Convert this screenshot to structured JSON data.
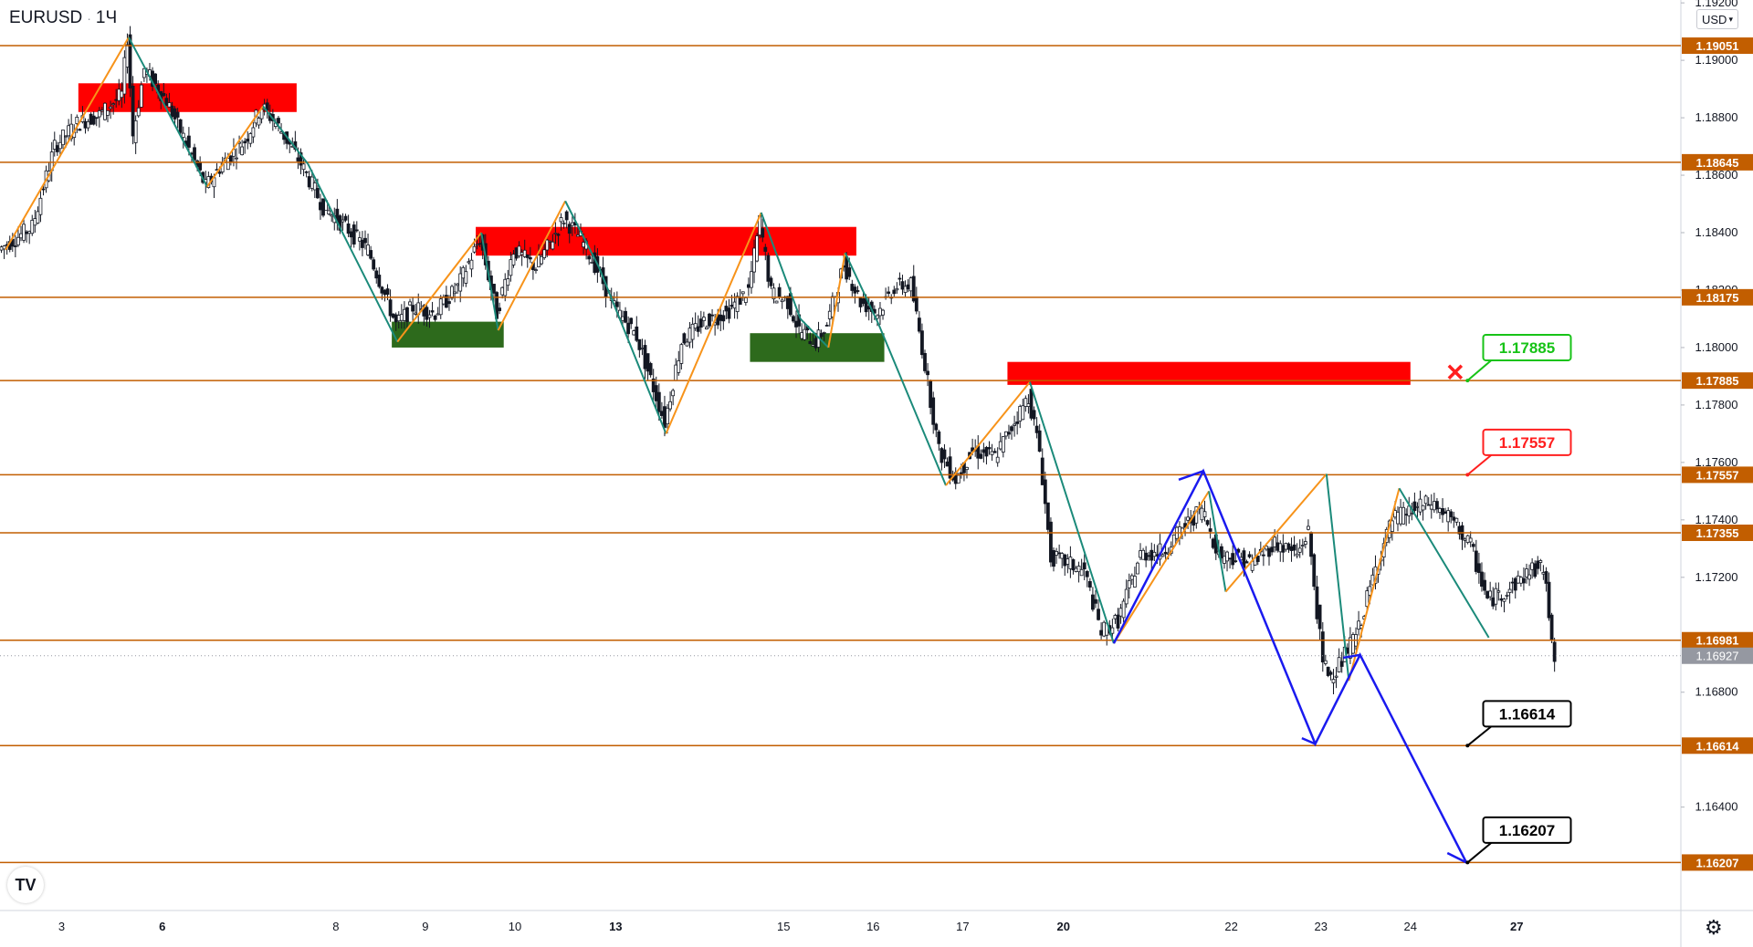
{
  "header": {
    "symbol": "EURUSD",
    "separator": "·",
    "timeframe": "1Ч"
  },
  "currency_button": {
    "label": "USD",
    "chevron": "chevron-down-icon"
  },
  "logo": {
    "text": "TV"
  },
  "settings": {
    "icon": "gear-icon",
    "glyph": "⚙"
  },
  "colors": {
    "level_line": "#c25e00",
    "level_label_bg": "#c25e00",
    "current_label_bg": "#9598a1",
    "resistance_zone": "#ff0000",
    "support_zone": "#2d6a1c",
    "zigzag_up": "#f7931a",
    "zigzag_down": "#1b8a7a",
    "projection": "#1a1aef",
    "target_green": "#17c317",
    "target_red": "#ff1f1f",
    "target_black": "#000000",
    "candle": "#131722",
    "axis_text": "#131722"
  },
  "chart_data": {
    "type": "candlestick",
    "title": "EURUSD · 1Ч",
    "xlabel": "",
    "ylabel": "",
    "ylim": [
      1.1604,
      1.1921
    ],
    "x_range": [
      0,
      146
    ],
    "x_ticks": [
      {
        "x": 5.5,
        "label": "3",
        "bold": false
      },
      {
        "x": 14.5,
        "label": "6",
        "bold": true
      },
      {
        "x": 30,
        "label": "8",
        "bold": false
      },
      {
        "x": 38,
        "label": "9",
        "bold": false
      },
      {
        "x": 46,
        "label": "10",
        "bold": false
      },
      {
        "x": 55,
        "label": "13",
        "bold": true
      },
      {
        "x": 70,
        "label": "15",
        "bold": false
      },
      {
        "x": 78,
        "label": "16",
        "bold": false
      },
      {
        "x": 86,
        "label": "17",
        "bold": false
      },
      {
        "x": 95,
        "label": "20",
        "bold": true
      },
      {
        "x": 110,
        "label": "22",
        "bold": false
      },
      {
        "x": 118,
        "label": "23",
        "bold": false
      },
      {
        "x": 126,
        "label": "24",
        "bold": false
      },
      {
        "x": 135.5,
        "label": "27",
        "bold": true
      }
    ],
    "y_ticks": [
      "1.19200",
      "1.19000",
      "1.18800",
      "1.18600",
      "1.18400",
      "1.18200",
      "1.18000",
      "1.17800",
      "1.17600",
      "1.17400",
      "1.17200",
      "1.16800",
      "1.16400"
    ],
    "levels": [
      {
        "value": 1.19051,
        "label": "1.19051"
      },
      {
        "value": 1.18645,
        "label": "1.18645"
      },
      {
        "value": 1.18175,
        "label": "1.18175"
      },
      {
        "value": 1.17885,
        "label": "1.17885"
      },
      {
        "value": 1.17557,
        "label": "1.17557"
      },
      {
        "value": 1.17355,
        "label": "1.17355"
      },
      {
        "value": 1.16981,
        "label": "1.16981"
      },
      {
        "value": 1.16614,
        "label": "1.16614"
      },
      {
        "value": 1.16207,
        "label": "1.16207"
      }
    ],
    "current_price": {
      "value": 1.16927,
      "label": "1.16927"
    },
    "zones": [
      {
        "kind": "resistance",
        "x0": 7,
        "x1": 26.5,
        "y0": 1.1892,
        "y1": 1.1882
      },
      {
        "kind": "resistance",
        "x0": 42.5,
        "x1": 76.5,
        "y0": 1.1842,
        "y1": 1.1832
      },
      {
        "kind": "resistance",
        "x0": 90,
        "x1": 126,
        "y0": 1.1795,
        "y1": 1.1787
      },
      {
        "kind": "support",
        "x0": 35,
        "x1": 45,
        "y0": 1.1809,
        "y1": 1.18
      },
      {
        "kind": "support",
        "x0": 67,
        "x1": 79,
        "y0": 1.1805,
        "y1": 1.1795
      }
    ],
    "zigzag": [
      [
        0.5,
        1.1834
      ],
      [
        11.5,
        1.1908
      ],
      [
        13,
        1.1897
      ],
      [
        18.5,
        1.1856
      ],
      [
        23.5,
        1.1884
      ],
      [
        27.5,
        1.1864
      ],
      [
        35.5,
        1.1802
      ],
      [
        43,
        1.184
      ],
      [
        44.5,
        1.1806
      ],
      [
        50.5,
        1.1851
      ],
      [
        53.5,
        1.1828
      ],
      [
        59.5,
        1.177
      ],
      [
        68,
        1.1847
      ],
      [
        71.5,
        1.181
      ],
      [
        74,
        1.18
      ],
      [
        75.5,
        1.1833
      ],
      [
        78.5,
        1.1808
      ],
      [
        84.5,
        1.1752
      ],
      [
        92,
        1.1788
      ],
      [
        99.5,
        1.1697
      ],
      [
        108,
        1.175
      ],
      [
        109.5,
        1.1715
      ],
      [
        118.5,
        1.1756
      ],
      [
        120.5,
        1.1684
      ],
      [
        125,
        1.1751
      ],
      [
        133,
        1.1699
      ]
    ],
    "projection": [
      {
        "points": [
          [
            99.5,
            1.1697
          ],
          [
            107.5,
            1.1757
          ],
          [
            117.5,
            1.1662
          ],
          [
            121.5,
            1.1693
          ],
          [
            131,
            1.16207
          ]
        ]
      }
    ],
    "projection_arrows": [
      {
        "tip": [
          117.5,
          1.1662
        ],
        "from": [
          116.3,
          1.1664
        ]
      },
      {
        "tip": [
          107.5,
          1.1757
        ],
        "from": [
          105.3,
          1.1754
        ]
      },
      {
        "tip": [
          121.5,
          1.1693
        ],
        "from": [
          120,
          1.1692
        ]
      },
      {
        "tip": [
          131,
          1.16207
        ],
        "from": [
          129.3,
          1.1624
        ]
      }
    ],
    "targets": [
      {
        "label": "1.17885",
        "color": "green",
        "x": 132.5,
        "y": 1.18,
        "anchor": [
          131.1,
          1.17885
        ],
        "cross": [
          130,
          1.17915
        ]
      },
      {
        "label": "1.17557",
        "color": "red",
        "x": 132.5,
        "y": 1.1767,
        "anchor": [
          131.1,
          1.17557
        ]
      },
      {
        "label": "1.16614",
        "color": "black",
        "x": 132.5,
        "y": 1.16725,
        "anchor": [
          131.1,
          1.16614
        ]
      },
      {
        "label": "1.16207",
        "color": "black",
        "x": 132.5,
        "y": 1.1632,
        "anchor": [
          131.1,
          1.16207
        ]
      }
    ],
    "candles_hourly_ohlc_summary": [
      [
        0,
        1.1834
      ],
      [
        3,
        1.1842
      ],
      [
        5,
        1.187
      ],
      [
        7,
        1.1878
      ],
      [
        9,
        1.1881
      ],
      [
        11,
        1.1888
      ],
      [
        11.5,
        1.1908
      ],
      [
        12,
        1.1874
      ],
      [
        13,
        1.1897
      ],
      [
        15,
        1.1886
      ],
      [
        17,
        1.1869
      ],
      [
        18.5,
        1.1856
      ],
      [
        20,
        1.1864
      ],
      [
        22,
        1.1872
      ],
      [
        23.5,
        1.1884
      ],
      [
        25,
        1.1877
      ],
      [
        27,
        1.1864
      ],
      [
        29,
        1.1849
      ],
      [
        31,
        1.1842
      ],
      [
        33,
        1.1834
      ],
      [
        35.5,
        1.1808
      ],
      [
        37,
        1.1814
      ],
      [
        39,
        1.1812
      ],
      [
        41,
        1.1821
      ],
      [
        43,
        1.1838
      ],
      [
        44.5,
        1.1812
      ],
      [
        46,
        1.1834
      ],
      [
        48,
        1.1828
      ],
      [
        50.5,
        1.1845
      ],
      [
        52,
        1.1838
      ],
      [
        53.5,
        1.1827
      ],
      [
        55,
        1.1814
      ],
      [
        57,
        1.1804
      ],
      [
        59.5,
        1.1774
      ],
      [
        61,
        1.1802
      ],
      [
        63,
        1.1809
      ],
      [
        65,
        1.1812
      ],
      [
        67,
        1.182
      ],
      [
        68,
        1.1844
      ],
      [
        69,
        1.1819
      ],
      [
        70.5,
        1.1816
      ],
      [
        71.5,
        1.1806
      ],
      [
        73,
        1.1802
      ],
      [
        74,
        1.1808
      ],
      [
        75.5,
        1.1829
      ],
      [
        77,
        1.1816
      ],
      [
        78.5,
        1.1812
      ],
      [
        80,
        1.1821
      ],
      [
        81.5,
        1.1822
      ],
      [
        82.5,
        1.18
      ],
      [
        84,
        1.1764
      ],
      [
        85.5,
        1.1754
      ],
      [
        87,
        1.1764
      ],
      [
        89,
        1.1762
      ],
      [
        92,
        1.1783
      ],
      [
        93,
        1.1764
      ],
      [
        94,
        1.1727
      ],
      [
        95.5,
        1.1725
      ],
      [
        97,
        1.1722
      ],
      [
        98.5,
        1.1701
      ],
      [
        100,
        1.1705
      ],
      [
        102,
        1.1728
      ],
      [
        104,
        1.1729
      ],
      [
        106,
        1.1738
      ],
      [
        107.5,
        1.1744
      ],
      [
        109,
        1.1728
      ],
      [
        110.5,
        1.1727
      ],
      [
        112,
        1.1725
      ],
      [
        114,
        1.1732
      ],
      [
        116,
        1.1728
      ],
      [
        117,
        1.1736
      ],
      [
        118.3,
        1.169
      ],
      [
        119,
        1.1686
      ],
      [
        120,
        1.1691
      ],
      [
        121.5,
        1.1702
      ],
      [
        123,
        1.1723
      ],
      [
        124.5,
        1.174
      ],
      [
        126,
        1.1743
      ],
      [
        128,
        1.1746
      ],
      [
        130,
        1.1739
      ],
      [
        131.5,
        1.1731
      ],
      [
        133,
        1.1712
      ],
      [
        135,
        1.1716
      ],
      [
        137,
        1.1723
      ],
      [
        138,
        1.1723
      ],
      [
        139,
        1.16927
      ]
    ]
  }
}
